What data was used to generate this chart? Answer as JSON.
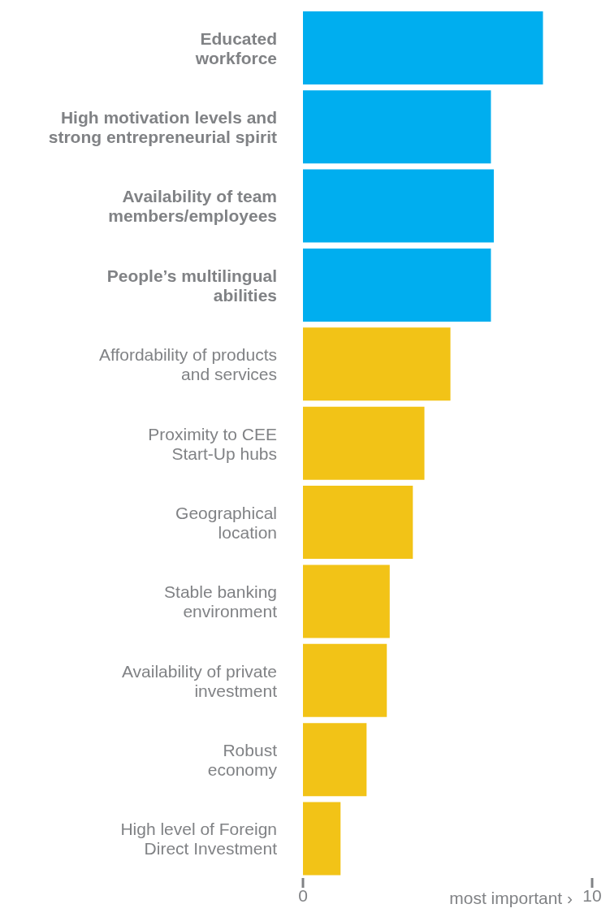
{
  "chart_data": {
    "type": "bar",
    "orientation": "horizontal",
    "categories": [
      "Educated\nworkforce",
      "High motivation levels and\nstrong entrepreneurial spirit",
      "Availability of team\nmembers/employees",
      "People’s multilingual\nabilities",
      "Affordability of products\nand services",
      "Proximity to CEE\nStart-Up hubs",
      "Geographical\nlocation",
      "Stable banking\nenvironment",
      "Availability of private\ninvestment",
      "Robust\neconomy",
      "High level of Foreign\nDirect Investment"
    ],
    "values": [
      8.3,
      6.5,
      6.6,
      6.5,
      5.1,
      4.2,
      3.8,
      3.0,
      2.9,
      2.2,
      1.3
    ],
    "colors": [
      "#00aeef",
      "#00aeef",
      "#00aeef",
      "#00aeef",
      "#f2c317",
      "#f2c317",
      "#f2c317",
      "#f2c317",
      "#f2c317",
      "#f2c317",
      "#f2c317"
    ],
    "xlim": [
      0,
      10
    ],
    "xticks": [
      0,
      10
    ],
    "xlabel": "most important ›",
    "grid": false,
    "legend": false
  }
}
